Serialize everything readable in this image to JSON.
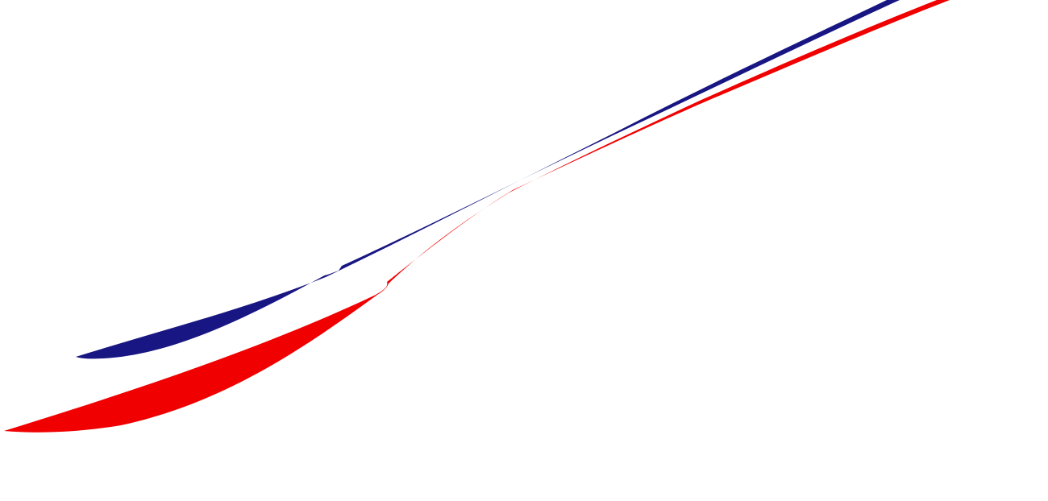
{
  "artwork": {
    "name": "swoosh-stripes-graphic",
    "colors": {
      "background": "#ffffff",
      "blue_stripe": "#181682",
      "red_stripe": "#f00000"
    }
  }
}
